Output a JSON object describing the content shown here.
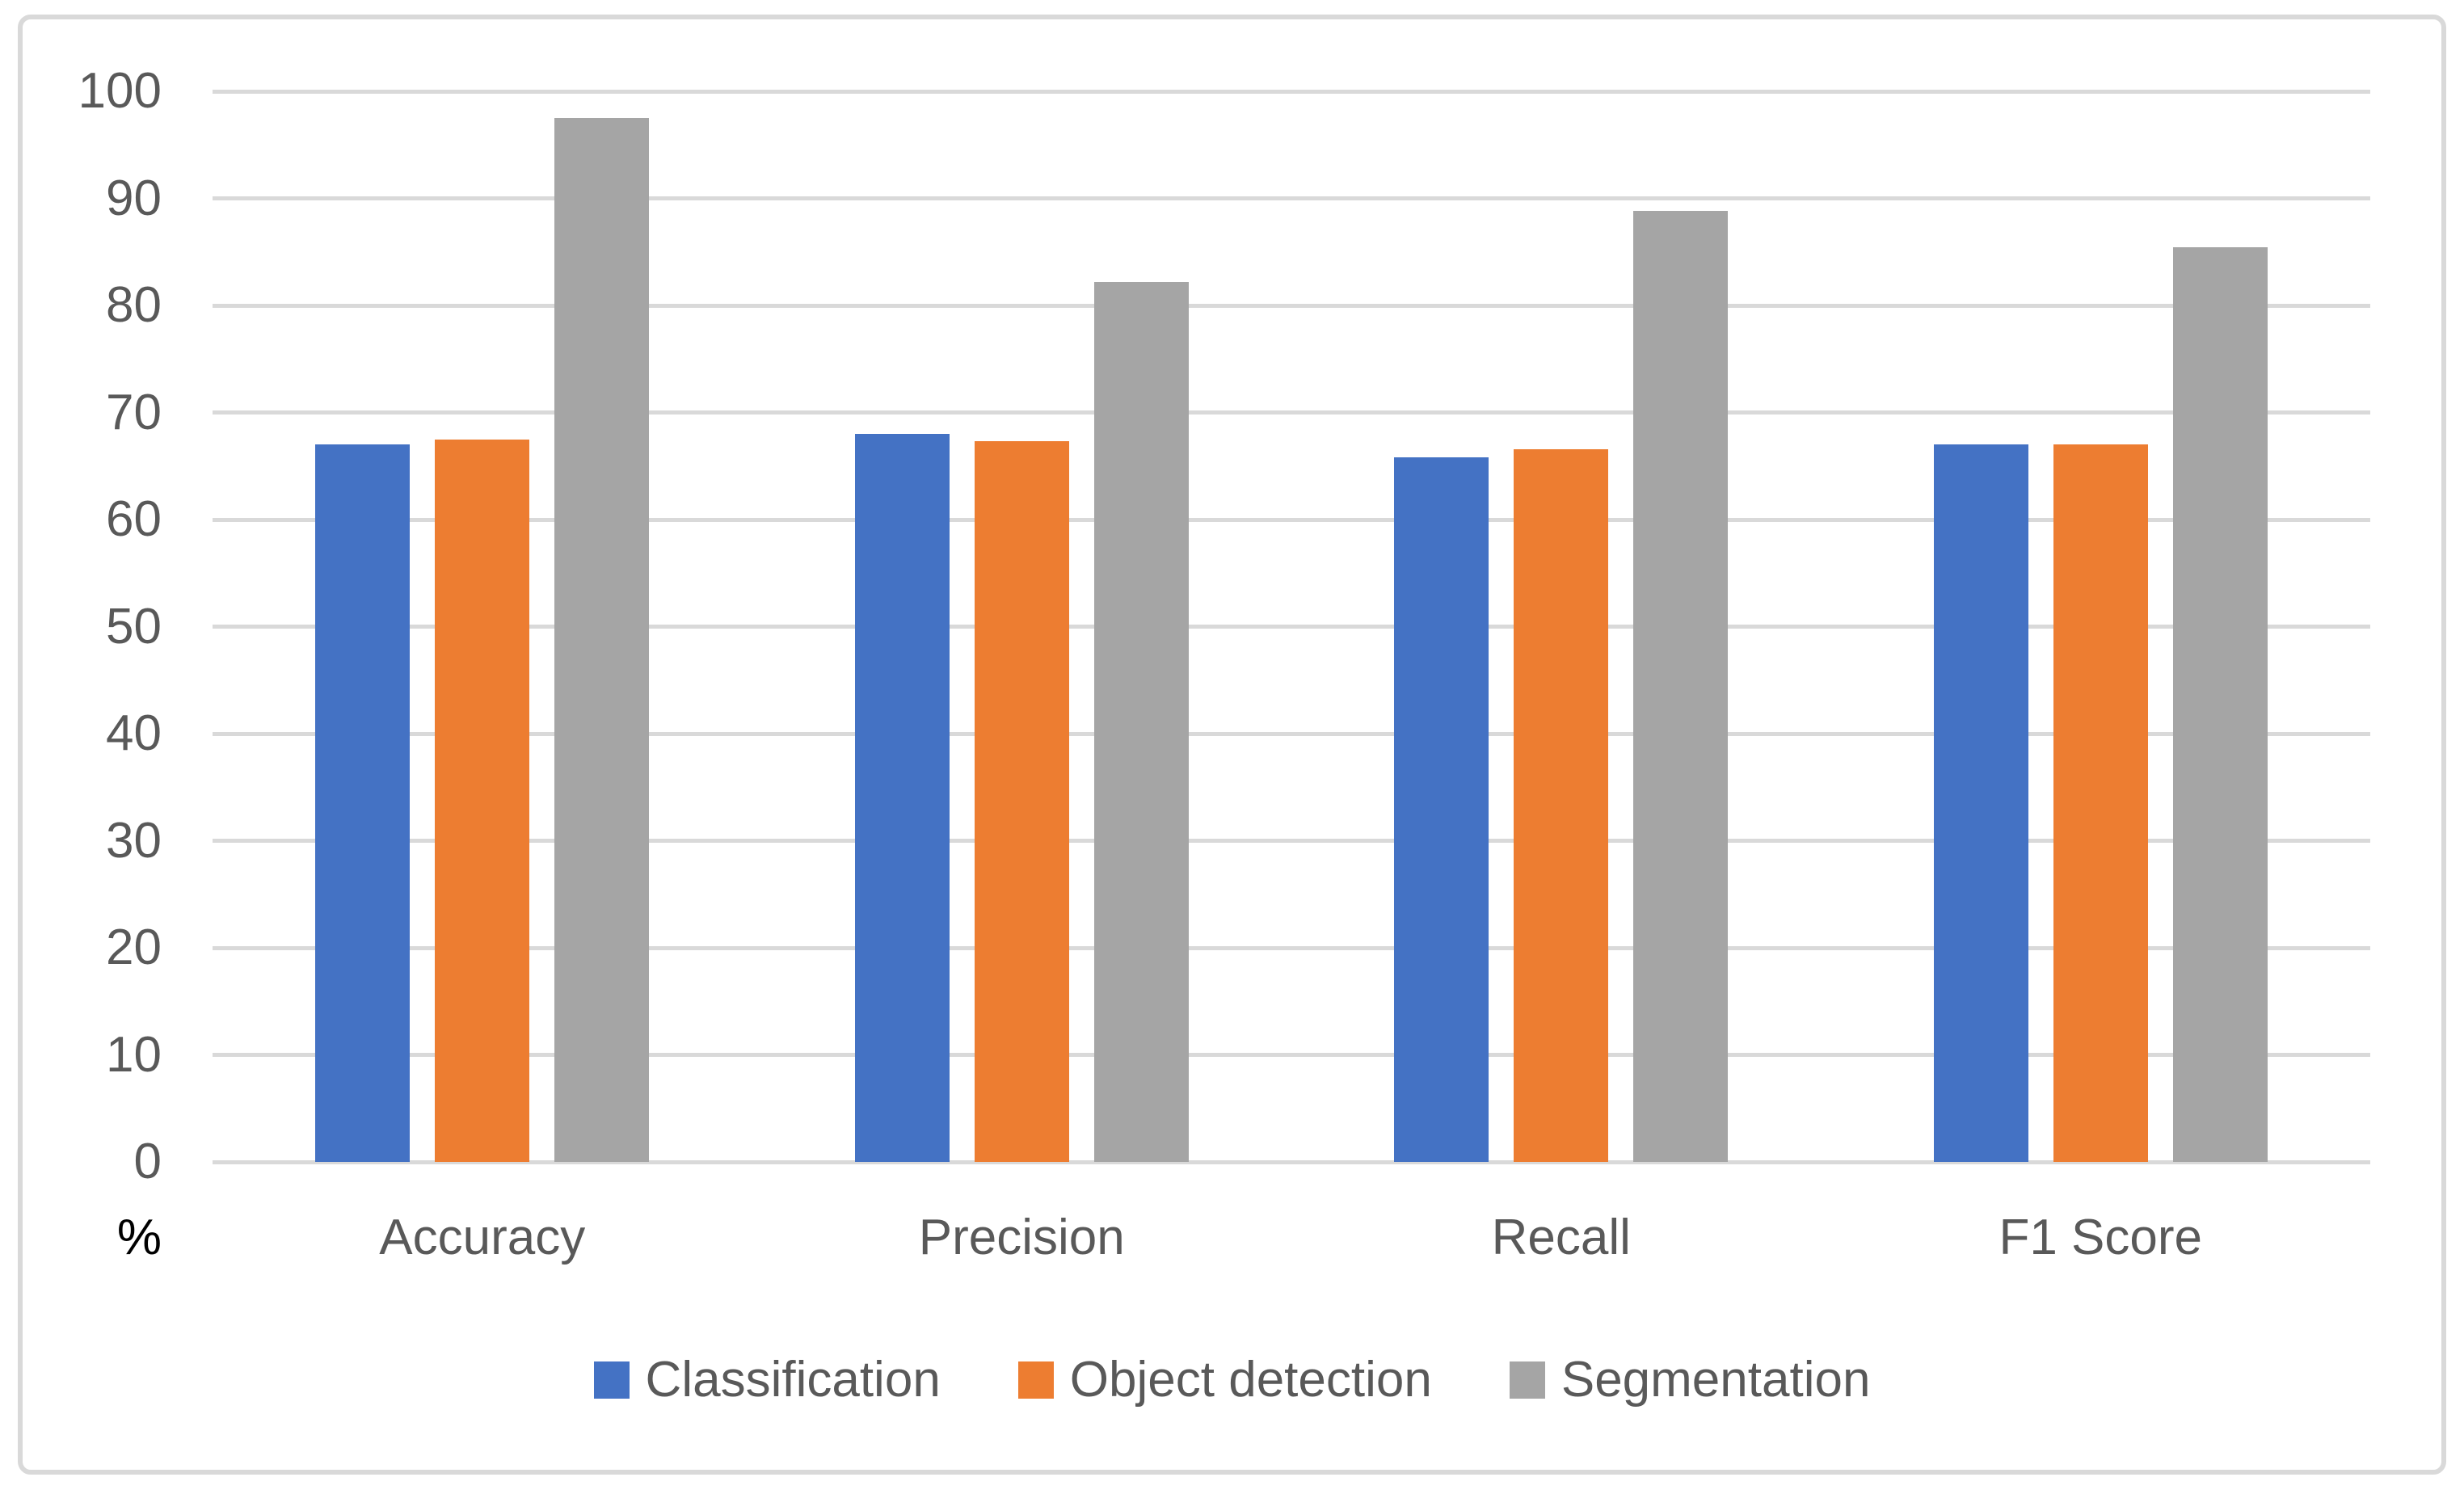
{
  "chart_data": {
    "type": "bar",
    "title": "",
    "categories": [
      "Accuracy",
      "Precision",
      "Recall",
      "F1 Score"
    ],
    "series": [
      {
        "name": "Classification",
        "color": "#4472C4",
        "values": [
          67.0,
          68.0,
          65.8,
          67.0
        ]
      },
      {
        "name": "Object detection",
        "color": "#ED7D31",
        "values": [
          67.5,
          67.3,
          66.6,
          67.0
        ]
      },
      {
        "name": "Segmentation",
        "color": "#A5A5A5",
        "values": [
          97.5,
          82.2,
          88.8,
          85.4
        ]
      }
    ],
    "xlabel": "",
    "ylabel": "%",
    "ylim": [
      0,
      100
    ],
    "yticks": [
      0,
      10,
      20,
      30,
      40,
      50,
      60,
      70,
      80,
      90,
      100
    ],
    "grid": true,
    "gridline_color": "#D9D9D9",
    "axis_text_color": "#595959",
    "unit_label_color": "#000000",
    "border_color": "#D9D9D9",
    "background": "#FFFFFF",
    "legend_position": "bottom"
  }
}
